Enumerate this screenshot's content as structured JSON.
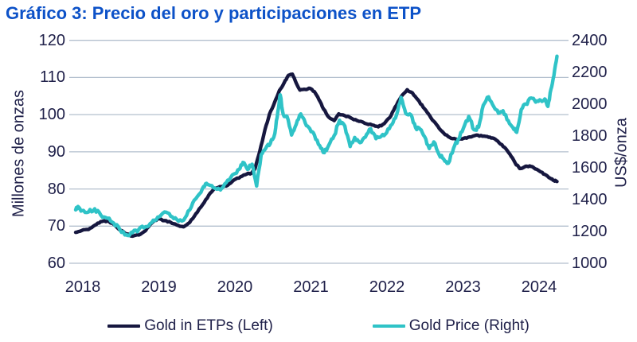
{
  "page": {
    "background": "#ffffff"
  },
  "chart_data": {
    "type": "line",
    "title": "Gráfico 3: Precio del oro y participaciones en ETP",
    "title_color": "#0d52c8",
    "text_color": "#20214a",
    "grid_color": "#b3bfce",
    "grid": "horizontal",
    "legend_position": "bottom",
    "x_axis": {
      "ticks": [
        "2018",
        "2019",
        "2020",
        "2021",
        "2022",
        "2023",
        "2024"
      ],
      "start": 2018,
      "end": 2024.45
    },
    "left_axis": {
      "label": "Millones de onzas",
      "min": 60,
      "max": 120,
      "ticks": [
        "120",
        "110",
        "100",
        "90",
        "80",
        "70",
        "60"
      ]
    },
    "right_axis": {
      "label": "US$/onza",
      "min": 1000,
      "max": 2400,
      "ticks": [
        "2400",
        "2200",
        "2000",
        "1800",
        "1600",
        "1400",
        "1200",
        "1000"
      ]
    },
    "series": [
      {
        "name": "Gold in ETPs (Left)",
        "axis": "left",
        "color": "#16173f",
        "jitter": 0.16,
        "points": [
          [
            2018.0,
            68.3
          ],
          [
            2018.08,
            68.8
          ],
          [
            2018.17,
            69.1
          ],
          [
            2018.25,
            70.2
          ],
          [
            2018.33,
            71.2
          ],
          [
            2018.42,
            71.4
          ],
          [
            2018.5,
            70.5
          ],
          [
            2018.58,
            69.0
          ],
          [
            2018.67,
            67.9
          ],
          [
            2018.75,
            67.3
          ],
          [
            2018.83,
            67.6
          ],
          [
            2018.92,
            68.8
          ],
          [
            2019.0,
            70.8
          ],
          [
            2019.08,
            72.0
          ],
          [
            2019.17,
            71.5
          ],
          [
            2019.25,
            71.0
          ],
          [
            2019.33,
            70.3
          ],
          [
            2019.42,
            69.8
          ],
          [
            2019.5,
            71.0
          ],
          [
            2019.58,
            73.3
          ],
          [
            2019.67,
            75.8
          ],
          [
            2019.75,
            78.3
          ],
          [
            2019.83,
            80.2
          ],
          [
            2019.92,
            80.6
          ],
          [
            2020.0,
            81.0
          ],
          [
            2020.08,
            82.4
          ],
          [
            2020.17,
            83.3
          ],
          [
            2020.25,
            84.0
          ],
          [
            2020.31,
            84.2
          ],
          [
            2020.36,
            85.5
          ],
          [
            2020.42,
            90.0
          ],
          [
            2020.49,
            96.0
          ],
          [
            2020.55,
            100.2
          ],
          [
            2020.62,
            103.5
          ],
          [
            2020.68,
            106.5
          ],
          [
            2020.74,
            108.5
          ],
          [
            2020.8,
            110.6
          ],
          [
            2020.85,
            110.9
          ],
          [
            2020.9,
            108.5
          ],
          [
            2020.95,
            106.6
          ],
          [
            2021.02,
            106.8
          ],
          [
            2021.08,
            107.1
          ],
          [
            2021.14,
            106.2
          ],
          [
            2021.2,
            104.0
          ],
          [
            2021.26,
            101.5
          ],
          [
            2021.33,
            99.3
          ],
          [
            2021.4,
            98.4
          ],
          [
            2021.46,
            100.2
          ],
          [
            2021.54,
            99.7
          ],
          [
            2021.62,
            99.1
          ],
          [
            2021.7,
            98.4
          ],
          [
            2021.8,
            97.7
          ],
          [
            2021.9,
            97.2
          ],
          [
            2021.98,
            96.7
          ],
          [
            2022.06,
            97.6
          ],
          [
            2022.13,
            99.2
          ],
          [
            2022.2,
            102.0
          ],
          [
            2022.28,
            104.8
          ],
          [
            2022.36,
            106.7
          ],
          [
            2022.43,
            105.8
          ],
          [
            2022.5,
            104.0
          ],
          [
            2022.57,
            102.0
          ],
          [
            2022.64,
            100.2
          ],
          [
            2022.71,
            98.2
          ],
          [
            2022.78,
            96.3
          ],
          [
            2022.86,
            94.6
          ],
          [
            2022.94,
            93.6
          ],
          [
            2023.02,
            93.3
          ],
          [
            2023.1,
            93.6
          ],
          [
            2023.18,
            94.0
          ],
          [
            2023.27,
            94.5
          ],
          [
            2023.35,
            94.2
          ],
          [
            2023.43,
            93.9
          ],
          [
            2023.5,
            93.6
          ],
          [
            2023.57,
            92.4
          ],
          [
            2023.64,
            91.2
          ],
          [
            2023.71,
            89.4
          ],
          [
            2023.78,
            87.0
          ],
          [
            2023.84,
            85.5
          ],
          [
            2023.9,
            85.9
          ],
          [
            2023.97,
            86.2
          ],
          [
            2024.03,
            85.6
          ],
          [
            2024.1,
            84.8
          ],
          [
            2024.17,
            83.9
          ],
          [
            2024.24,
            82.9
          ],
          [
            2024.29,
            82.3
          ],
          [
            2024.33,
            82.0
          ]
        ]
      },
      {
        "name": "Gold Price (Right)",
        "axis": "right",
        "color": "#2fc3c7",
        "jitter": 11,
        "points": [
          [
            2018.0,
            1335
          ],
          [
            2018.04,
            1352
          ],
          [
            2018.08,
            1330
          ],
          [
            2018.17,
            1322
          ],
          [
            2018.25,
            1342
          ],
          [
            2018.33,
            1303
          ],
          [
            2018.42,
            1282
          ],
          [
            2018.5,
            1252
          ],
          [
            2018.58,
            1213
          ],
          [
            2018.67,
            1180
          ],
          [
            2018.7,
            1174
          ],
          [
            2018.75,
            1192
          ],
          [
            2018.83,
            1213
          ],
          [
            2018.92,
            1230
          ],
          [
            2019.0,
            1255
          ],
          [
            2019.08,
            1290
          ],
          [
            2019.17,
            1322
          ],
          [
            2019.25,
            1295
          ],
          [
            2019.33,
            1275
          ],
          [
            2019.42,
            1270
          ],
          [
            2019.5,
            1335
          ],
          [
            2019.58,
            1405
          ],
          [
            2019.67,
            1472
          ],
          [
            2019.72,
            1502
          ],
          [
            2019.79,
            1488
          ],
          [
            2019.86,
            1465
          ],
          [
            2019.92,
            1470
          ],
          [
            2020.0,
            1522
          ],
          [
            2020.08,
            1560
          ],
          [
            2020.15,
            1590
          ],
          [
            2020.2,
            1633
          ],
          [
            2020.26,
            1590
          ],
          [
            2020.32,
            1622
          ],
          [
            2020.38,
            1485
          ],
          [
            2020.44,
            1682
          ],
          [
            2020.5,
            1722
          ],
          [
            2020.56,
            1752
          ],
          [
            2020.62,
            1815
          ],
          [
            2020.66,
            1955
          ],
          [
            2020.69,
            2058
          ],
          [
            2020.73,
            1935
          ],
          [
            2020.78,
            1922
          ],
          [
            2020.84,
            1805
          ],
          [
            2020.9,
            1872
          ],
          [
            2020.96,
            1938
          ],
          [
            2021.02,
            1880
          ],
          [
            2021.08,
            1845
          ],
          [
            2021.14,
            1805
          ],
          [
            2021.21,
            1738
          ],
          [
            2021.27,
            1695
          ],
          [
            2021.33,
            1742
          ],
          [
            2021.4,
            1802
          ],
          [
            2021.47,
            1898
          ],
          [
            2021.54,
            1862
          ],
          [
            2021.61,
            1733
          ],
          [
            2021.67,
            1790
          ],
          [
            2021.74,
            1757
          ],
          [
            2021.81,
            1792
          ],
          [
            2021.88,
            1845
          ],
          [
            2021.95,
            1782
          ],
          [
            2022.02,
            1798
          ],
          [
            2022.09,
            1820
          ],
          [
            2022.16,
            1872
          ],
          [
            2022.22,
            1932
          ],
          [
            2022.28,
            2042
          ],
          [
            2022.34,
            1942
          ],
          [
            2022.41,
            1932
          ],
          [
            2022.47,
            1852
          ],
          [
            2022.53,
            1842
          ],
          [
            2022.59,
            1795
          ],
          [
            2022.65,
            1720
          ],
          [
            2022.71,
            1762
          ],
          [
            2022.78,
            1682
          ],
          [
            2022.84,
            1655
          ],
          [
            2022.9,
            1628
          ],
          [
            2022.97,
            1722
          ],
          [
            2023.03,
            1778
          ],
          [
            2023.1,
            1848
          ],
          [
            2023.17,
            1922
          ],
          [
            2023.24,
            1838
          ],
          [
            2023.3,
            1855
          ],
          [
            2023.36,
            1992
          ],
          [
            2023.43,
            2045
          ],
          [
            2023.5,
            1982
          ],
          [
            2023.56,
            1942
          ],
          [
            2023.62,
            1958
          ],
          [
            2023.69,
            1895
          ],
          [
            2023.75,
            1852
          ],
          [
            2023.8,
            1822
          ],
          [
            2023.86,
            1965
          ],
          [
            2023.92,
            2000
          ],
          [
            2023.99,
            2038
          ],
          [
            2024.05,
            2012
          ],
          [
            2024.12,
            2022
          ],
          [
            2024.17,
            2032
          ],
          [
            2024.21,
            1985
          ],
          [
            2024.25,
            2092
          ],
          [
            2024.29,
            2180
          ],
          [
            2024.33,
            2300
          ]
        ]
      }
    ]
  }
}
